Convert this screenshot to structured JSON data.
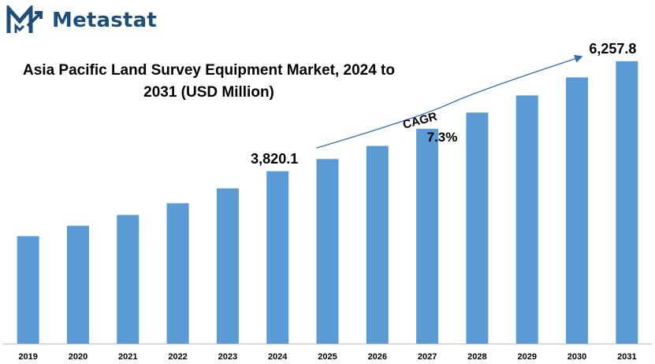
{
  "brand": {
    "name": "Metastat",
    "logo_icon": "metastat-m-logo",
    "color": "#1f4e79"
  },
  "chart_data": {
    "type": "bar",
    "title": "Asia Pacific Land Survey Equipment Market, 2024 to 2031 (USD Million)",
    "xlabel": "",
    "ylabel": "",
    "categories": [
      "2019",
      "2020",
      "2021",
      "2022",
      "2023",
      "2024",
      "2025",
      "2026",
      "2027",
      "2028",
      "2029",
      "2030",
      "2031"
    ],
    "values": [
      2380,
      2610,
      2850,
      3110,
      3440,
      3820.1,
      4090,
      4380,
      4760,
      5120,
      5500,
      5900,
      6257.8
    ],
    "data_labels": [
      {
        "category": "2024",
        "text": "3,820.1"
      },
      {
        "category": "2031",
        "text": "6,257.8"
      }
    ],
    "annotation": {
      "label": "CAGR",
      "value": "7.3%"
    },
    "ylim": [
      0,
      6900
    ],
    "grid": false,
    "bar_color": "#5b9bd5",
    "arrow_color": "#2e6fb5"
  }
}
